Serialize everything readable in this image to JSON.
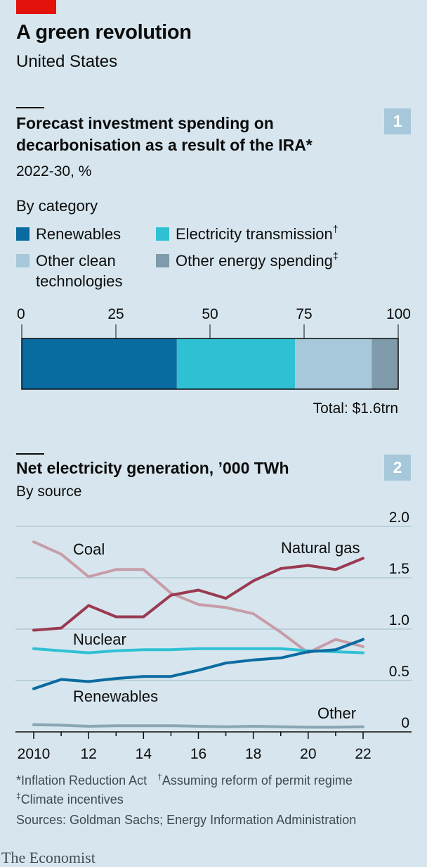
{
  "header": {
    "title": "A green revolution",
    "subtitle": "United States"
  },
  "chart_data": [
    {
      "type": "bar",
      "number": "1",
      "title_line1": "Forecast investment spending on",
      "title_line2": "decarbonisation as a result of the IRA*",
      "subtitle": "2022-30, %",
      "section_label": "By category",
      "legend": {
        "renewables": "Renewables",
        "transmission": "Electricity transmission",
        "transmission_mark": "†",
        "other_clean_1": "Other clean",
        "other_clean_2": "technologies",
        "other_energy": "Other energy spending",
        "other_energy_mark": "‡"
      },
      "xlim": [
        0,
        100
      ],
      "ticks": [
        "0",
        "25",
        "50",
        "75",
        "100"
      ],
      "segments": [
        {
          "name": "Renewables",
          "value": 41.2,
          "color": "#0a6ba1"
        },
        {
          "name": "Electricity transmission",
          "value": 31.4,
          "color": "#2fc1d3"
        },
        {
          "name": "Other clean technologies",
          "value": 20.4,
          "color": "#a6c8da"
        },
        {
          "name": "Other energy spending",
          "value": 7.0,
          "color": "#7f9aaa"
        }
      ],
      "total_label": "Total: $1.6trn"
    },
    {
      "type": "line",
      "number": "2",
      "title": "Net electricity generation, ’000 TWh",
      "subtitle": "By source",
      "x": [
        2010,
        2011,
        2012,
        2013,
        2014,
        2015,
        2016,
        2017,
        2018,
        2019,
        2020,
        2021,
        2022
      ],
      "xticks": [
        "2010",
        "12",
        "14",
        "16",
        "18",
        "20",
        "22"
      ],
      "yticks": [
        "2.0",
        "1.5",
        "1.0",
        "0.5",
        "0"
      ],
      "ylim": [
        0,
        2.0
      ],
      "series": [
        {
          "name": "Coal",
          "color": "#c79da8",
          "values": [
            1.85,
            1.73,
            1.51,
            1.58,
            1.58,
            1.35,
            1.24,
            1.21,
            1.15,
            0.97,
            0.77,
            0.9,
            0.83
          ]
        },
        {
          "name": "Natural gas",
          "color": "#9a3a51",
          "values": [
            0.99,
            1.01,
            1.23,
            1.12,
            1.12,
            1.33,
            1.38,
            1.3,
            1.47,
            1.59,
            1.62,
            1.58,
            1.69
          ]
        },
        {
          "name": "Nuclear",
          "color": "#2fc1d3",
          "values": [
            0.81,
            0.79,
            0.77,
            0.79,
            0.8,
            0.8,
            0.81,
            0.81,
            0.81,
            0.81,
            0.79,
            0.78,
            0.77
          ]
        },
        {
          "name": "Renewables",
          "color": "#0a6ba1",
          "values": [
            0.42,
            0.51,
            0.49,
            0.52,
            0.54,
            0.54,
            0.6,
            0.67,
            0.7,
            0.72,
            0.78,
            0.8,
            0.9
          ]
        },
        {
          "name": "Other",
          "color": "#8aa6b5",
          "values": [
            0.07,
            0.065,
            0.055,
            0.06,
            0.06,
            0.06,
            0.055,
            0.05,
            0.055,
            0.05,
            0.045,
            0.045,
            0.05
          ]
        }
      ],
      "labels": {
        "coal": "Coal",
        "gas": "Natural gas",
        "nuclear": "Nuclear",
        "renewables": "Renewables",
        "other": "Other"
      }
    }
  ],
  "footnotes": {
    "ira": "*Inflation Reduction Act",
    "permit_mark": "†",
    "permit": "Assuming reform of permit regime",
    "climate_mark": "‡",
    "climate": "Climate incentives",
    "sources": "Sources: Goldman Sachs; Energy Information Administration"
  },
  "brand": "The Economist"
}
